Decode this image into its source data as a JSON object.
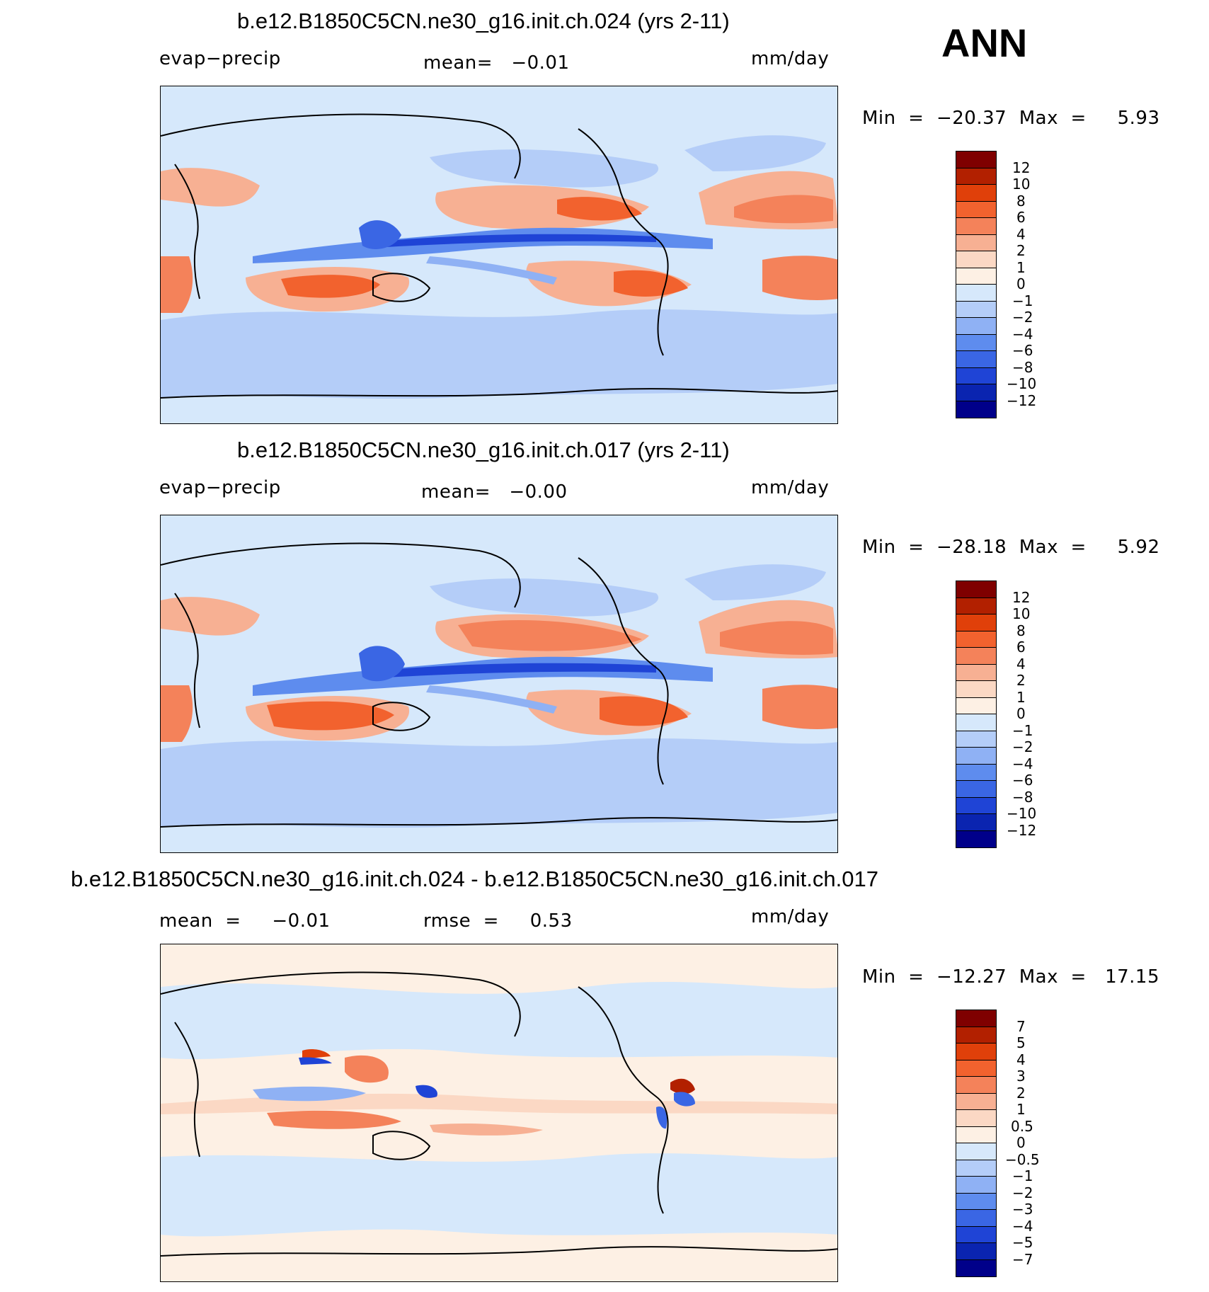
{
  "season": "ANN",
  "panels": [
    {
      "title": "b.e12.B1850C5CN.ne30_g16.init.ch.024 (yrs 2-11)",
      "left_label": "evap−precip",
      "center_label": "mean=   −0.01",
      "right_label": "mm/day",
      "minmax": "Min  =  −20.37  Max  =     5.93",
      "colorbar": {
        "labels": [
          "12",
          "10",
          "8",
          "6",
          "4",
          "2",
          "1",
          "0",
          "−1",
          "−2",
          "−4",
          "−6",
          "−8",
          "−10",
          "−12"
        ]
      }
    },
    {
      "title": "b.e12.B1850C5CN.ne30_g16.init.ch.017 (yrs 2-11)",
      "left_label": "evap−precip",
      "center_label": "mean=   −0.00",
      "right_label": "mm/day",
      "minmax": "Min  =  −28.18  Max  =     5.92",
      "colorbar": {
        "labels": [
          "12",
          "10",
          "8",
          "6",
          "4",
          "2",
          "1",
          "0",
          "−1",
          "−2",
          "−4",
          "−6",
          "−8",
          "−10",
          "−12"
        ]
      }
    },
    {
      "title": "b.e12.B1850C5CN.ne30_g16.init.ch.024 - b.e12.B1850C5CN.ne30_g16.init.ch.017",
      "left_label": "mean  =     −0.01",
      "center_label": "rmse  =     0.53",
      "right_label": "mm/day",
      "minmax": "Min  =  −12.27  Max  =   17.15",
      "colorbar": {
        "labels": [
          "7",
          "5",
          "4",
          "3",
          "2",
          "1",
          "0.5",
          "0",
          "−0.5",
          "−1",
          "−2",
          "−3",
          "−4",
          "−5",
          "−7"
        ]
      }
    }
  ],
  "colors": {
    "palette": [
      "#7f0000",
      "#b22000",
      "#e0400a",
      "#f2622e",
      "#f4825a",
      "#f7b093",
      "#fbd8c4",
      "#fdf0e4",
      "#d6e8fb",
      "#b4cdf8",
      "#8fb1f4",
      "#5e8cee",
      "#3a66e4",
      "#1f44d6",
      "#0a24b0",
      "#00008a"
    ]
  }
}
